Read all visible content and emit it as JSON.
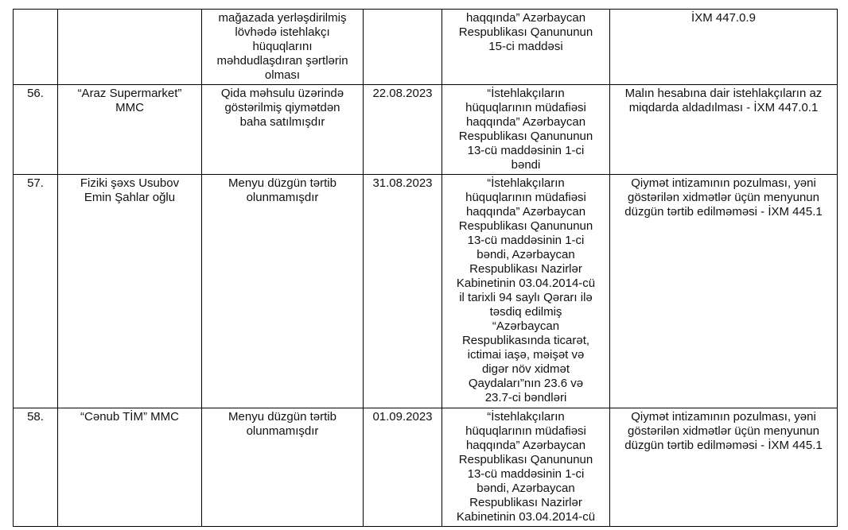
{
  "table": {
    "rows": [
      {
        "no": "",
        "entity": "",
        "violation": "mağazada yerləşdirilmiş\nlövhədə istehlakçı\nhüquqlarını\nməhdudlaşdıran şərtlərin\nolması",
        "date": "",
        "legal_basis": "haqqında” Azərbaycan\nRespublikası Qanununun\n15-ci maddəsi",
        "decision": "İXM 447.0.9"
      },
      {
        "no": "56.",
        "entity": "“Araz Supermarket”\nMMC",
        "violation": "Qida məhsulu üzərində\ngöstərilmiş qiymətdən\nbaha satılmışdır",
        "date": "22.08.2023",
        "legal_basis": "“İstehlakçıların\nhüquqlarının müdafiəsi\nhaqqında” Azərbaycan\nRespublikası Qanununun\n13-cü maddəsinin 1-ci\nbəndi",
        "decision": "Malın hesabına dair istehlakçıların az\nmiqdarda aldadılması - İXM 447.0.1"
      },
      {
        "no": "57.",
        "entity": "Fiziki şəxs Usubov\nEmin Şahlar oğlu",
        "violation": "Menyu düzgün tərtib\nolunmamışdır",
        "date": "31.08.2023",
        "legal_basis": "“İstehlakçıların\nhüquqlarının müdafiəsi\nhaqqında” Azərbaycan\nRespublikası Qanununun\n13-cü maddəsinin 1-ci\nbəndi, Azərbaycan\nRespublikası Nazirlər\nKabinetinin 03.04.2014-cü\nil tarixli 94 saylı Qərarı ilə\ntəsdiq edilmiş\n“Azərbaycan\nRespublikasında ticarət,\nictimai iaşə, məişət və\ndigər növ xidmət\nQaydaları”nın 23.6 və\n23.7-ci bəndləri",
        "decision": "Qiymət intizamının pozulması, yəni\ngöstərilən xidmətlər üçün menyunun\ndüzgün tərtib edilməməsi - İXM 445.1"
      },
      {
        "no": "58.",
        "entity": "“Cənub TİM” MMC",
        "violation": "Menyu düzgün tərtib\nolunmamışdır",
        "date": "01.09.2023",
        "legal_basis": "“İstehlakçıların\nhüquqlarının müdafiəsi\nhaqqında” Azərbaycan\nRespublikası Qanununun\n13-cü maddəsinin 1-ci\nbəndi, Azərbaycan\nRespublikası Nazirlər\nKabinetinin 03.04.2014-cü",
        "decision": "Qiymət intizamının pozulması, yəni\ngöstərilən xidmətlər üçün menyunun\ndüzgün tərtib edilməməsi - İXM 445.1"
      }
    ]
  }
}
